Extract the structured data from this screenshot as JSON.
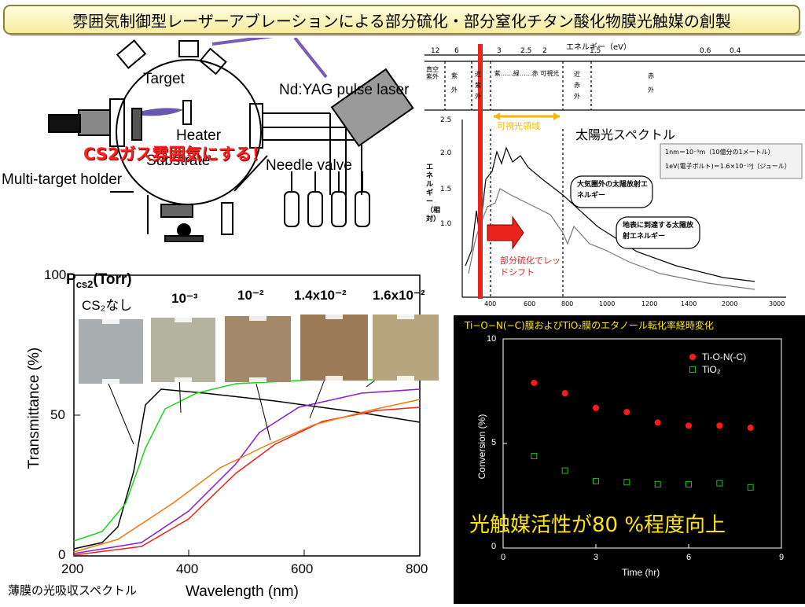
{
  "title": "雰囲気制御型レーザーアブレーションによる部分硫化・部分窒化チタン酸化物膜光触媒の創製",
  "apparatus": {
    "labels": {
      "target": "Target",
      "laser": "Nd:YAG pulse laser",
      "heater": "Heater",
      "substrate": "Substrate",
      "needle_valve": "Needle valve",
      "multi_target_holder": "Multi-target holder"
    },
    "annotation": "CS2ガス雰囲気にする！"
  },
  "spectrum": {
    "energy_axis_label": "エネルギー（eV）",
    "energy_ticks": [
      "12",
      "6",
      "3",
      "2.5",
      "2",
      "1.5",
      "0.6",
      "0.4"
    ],
    "region_labels": [
      "真空紫外",
      "紫外",
      "近紫外",
      "紫……緑……赤 可視光",
      "近赤外",
      "赤外"
    ],
    "visible_region_label": "可視光領域",
    "sunlight_label": "太陽光スペクトル",
    "y_axis_label": "エネルギー（相対）",
    "y_ticks": [
      "2.5",
      "2.0",
      "1.5",
      "1.0"
    ],
    "x_ticks": [
      "400",
      "600",
      "800",
      "1000",
      "1200",
      "1400",
      "2000",
      "3000"
    ],
    "note_line1": "1nm＝10⁻⁹m（10億分の1メートル）",
    "note_line2": "1eV(電子ボルト)＝1.6×10⁻¹⁹J（ジュール）",
    "callout_outside": "大気圏外の太陽放射エネルギー",
    "callout_ground": "地表に到達する太陽放射エネルギー",
    "redshift_label": "部分硫化でレッドシフト"
  },
  "transmittance": {
    "pressure_label": "P",
    "pressure_sub": "cs2",
    "pressure_unit": "(Torr)",
    "samples": [
      {
        "label": "CS₂なし",
        "color": "#a8aeaf"
      },
      {
        "label": "10⁻³",
        "color": "#b4b3a0"
      },
      {
        "label": "10⁻²",
        "color": "#a3896a"
      },
      {
        "label": "1.4x10⁻²",
        "color": "#9c7a58"
      },
      {
        "label": "1.6x10⁻²",
        "color": "#b6a57e"
      }
    ],
    "x_label": "Wavelength (nm)",
    "y_label": "Transmittance (%)",
    "x_ticks": [
      "200",
      "400",
      "600",
      "800"
    ],
    "y_ticks": [
      "100",
      "50",
      "0"
    ],
    "footer": "薄膜の光吸収スペクトル"
  },
  "chart_data": {
    "type": "scatter",
    "title": "Ti−O−N(−C)膜およびTiO₂膜のエタノール転化率経時変化",
    "xlabel": "Time (hr)",
    "ylabel": "Conversion (%)",
    "xlim": [
      0,
      9
    ],
    "ylim": [
      0,
      10
    ],
    "x_ticks": [
      "0",
      "3",
      "6",
      "9"
    ],
    "y_ticks": [
      "0",
      "5",
      "10"
    ],
    "legend_position": "top-right",
    "series": [
      {
        "name": "Ti-O-N(-C)",
        "color": "#ff1a1a",
        "marker": "filled-circle",
        "x": [
          1,
          2,
          3,
          4,
          5,
          6,
          7,
          8
        ],
        "y": [
          7.9,
          7.4,
          6.7,
          6.5,
          6.0,
          5.85,
          5.85,
          5.75
        ]
      },
      {
        "name": "TiO₂",
        "color": "#19c219",
        "marker": "open-square",
        "x": [
          1,
          2,
          3,
          4,
          5,
          6,
          7,
          8
        ],
        "y": [
          4.4,
          3.7,
          3.2,
          3.15,
          3.05,
          3.05,
          3.1,
          2.9
        ]
      }
    ],
    "annotation": "光触媒活性が80 %程度向上"
  }
}
